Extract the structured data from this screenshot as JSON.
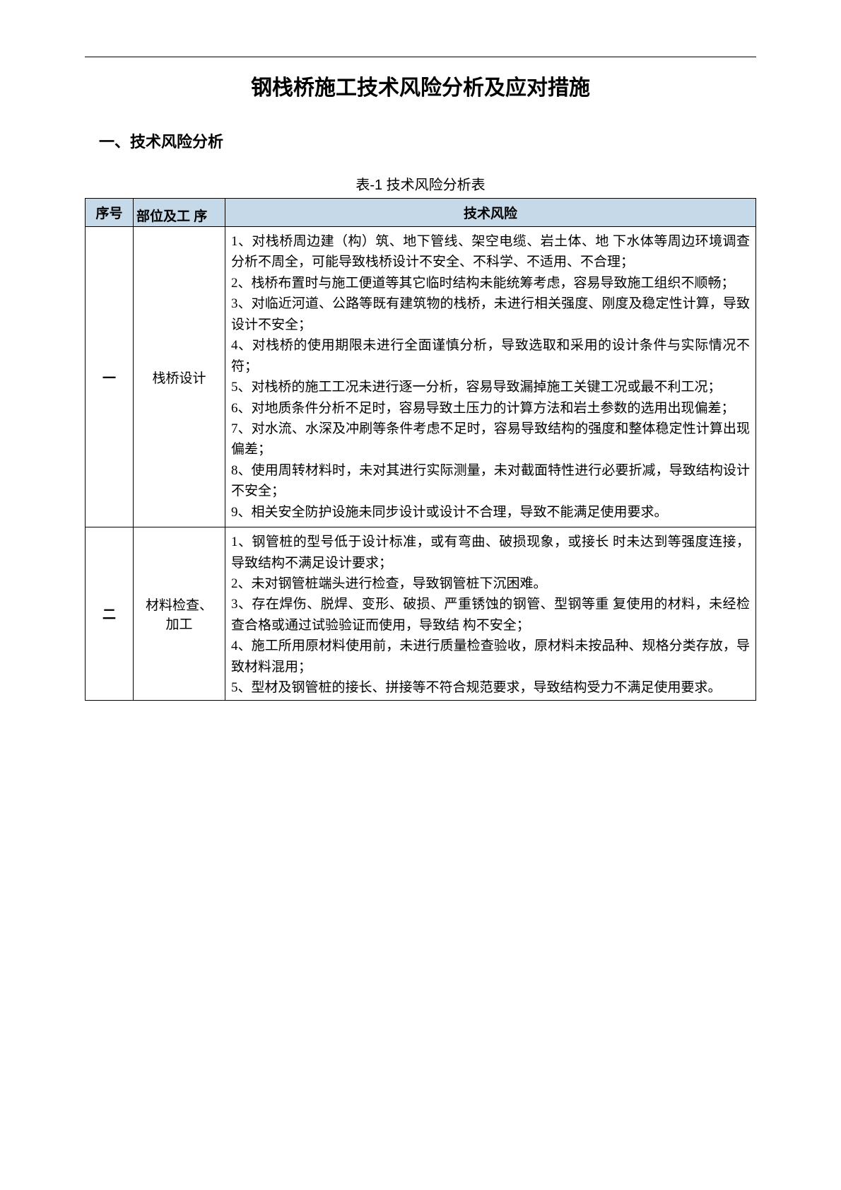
{
  "doc": {
    "title": "钢栈桥施工技术风险分析及应对措施",
    "section1": "一、技术风险分析",
    "tableCaption": "表-1 技术风险分析表"
  },
  "table": {
    "headers": {
      "num": "序号",
      "part": "部位及工  序",
      "risk": "技术风险"
    },
    "rows": [
      {
        "num": "一",
        "part": "栈桥设计",
        "risk": "1、对栈桥周边建（构）筑、地下管线、架空电缆、岩土体、地 下水体等周边环境调查分析不周全，可能导致栈桥设计不安全、不科学、不适用、不合理；\n2、栈桥布置时与施工便道等其它临时结构未能统筹考虑，容易导致施工组织不顺畅；\n3、对临近河道、公路等既有建筑物的栈桥，未进行相关强度、刚度及稳定性计算，导致设计不安全；\n4、对栈桥的使用期限未进行全面谨慎分析，导致选取和采用的设计条件与实际情况不符；\n5、对栈桥的施工工况未进行逐一分析，容易导致漏掉施工关键工况或最不利工况；\n6、对地质条件分析不足时，容易导致土压力的计算方法和岩土参数的选用出现偏差；\n7、对水流、水深及冲刷等条件考虑不足时，容易导致结构的强度和整体稳定性计算出现偏差；\n8、使用周转材料时，未对其进行实际测量，未对截面特性进行必要折减，导致结构设计不安全；\n9、相关安全防护设施未同步设计或设计不合理，导致不能满足使用要求。"
      },
      {
        "num": "二",
        "part": "材料检查、加工",
        "risk": "1、钢管桩的型号低于设计标准，或有弯曲、破损现象，或接长 时未达到等强度连接，导致结构不满足设计要求；\n2、未对钢管桩端头进行检查，导致钢管桩下沉困难。\n3、存在焊伤、脱焊、变形、破损、严重锈蚀的钢管、型钢等重 复使用的材料，未经检查合格或通过试验验证而使用，导致结 构不安全；\n4、施工所用原材料使用前，未进行质量检查验收，原材料未按品种、规格分类存放，导致材料混用；\n5、型材及钢管桩的接长、拼接等不符合规范要求，导致结构受力不满足使用要求。"
      }
    ]
  },
  "colors": {
    "headerBg": "#c5d9e8",
    "border": "#000000",
    "text": "#000000",
    "background": "#ffffff"
  }
}
